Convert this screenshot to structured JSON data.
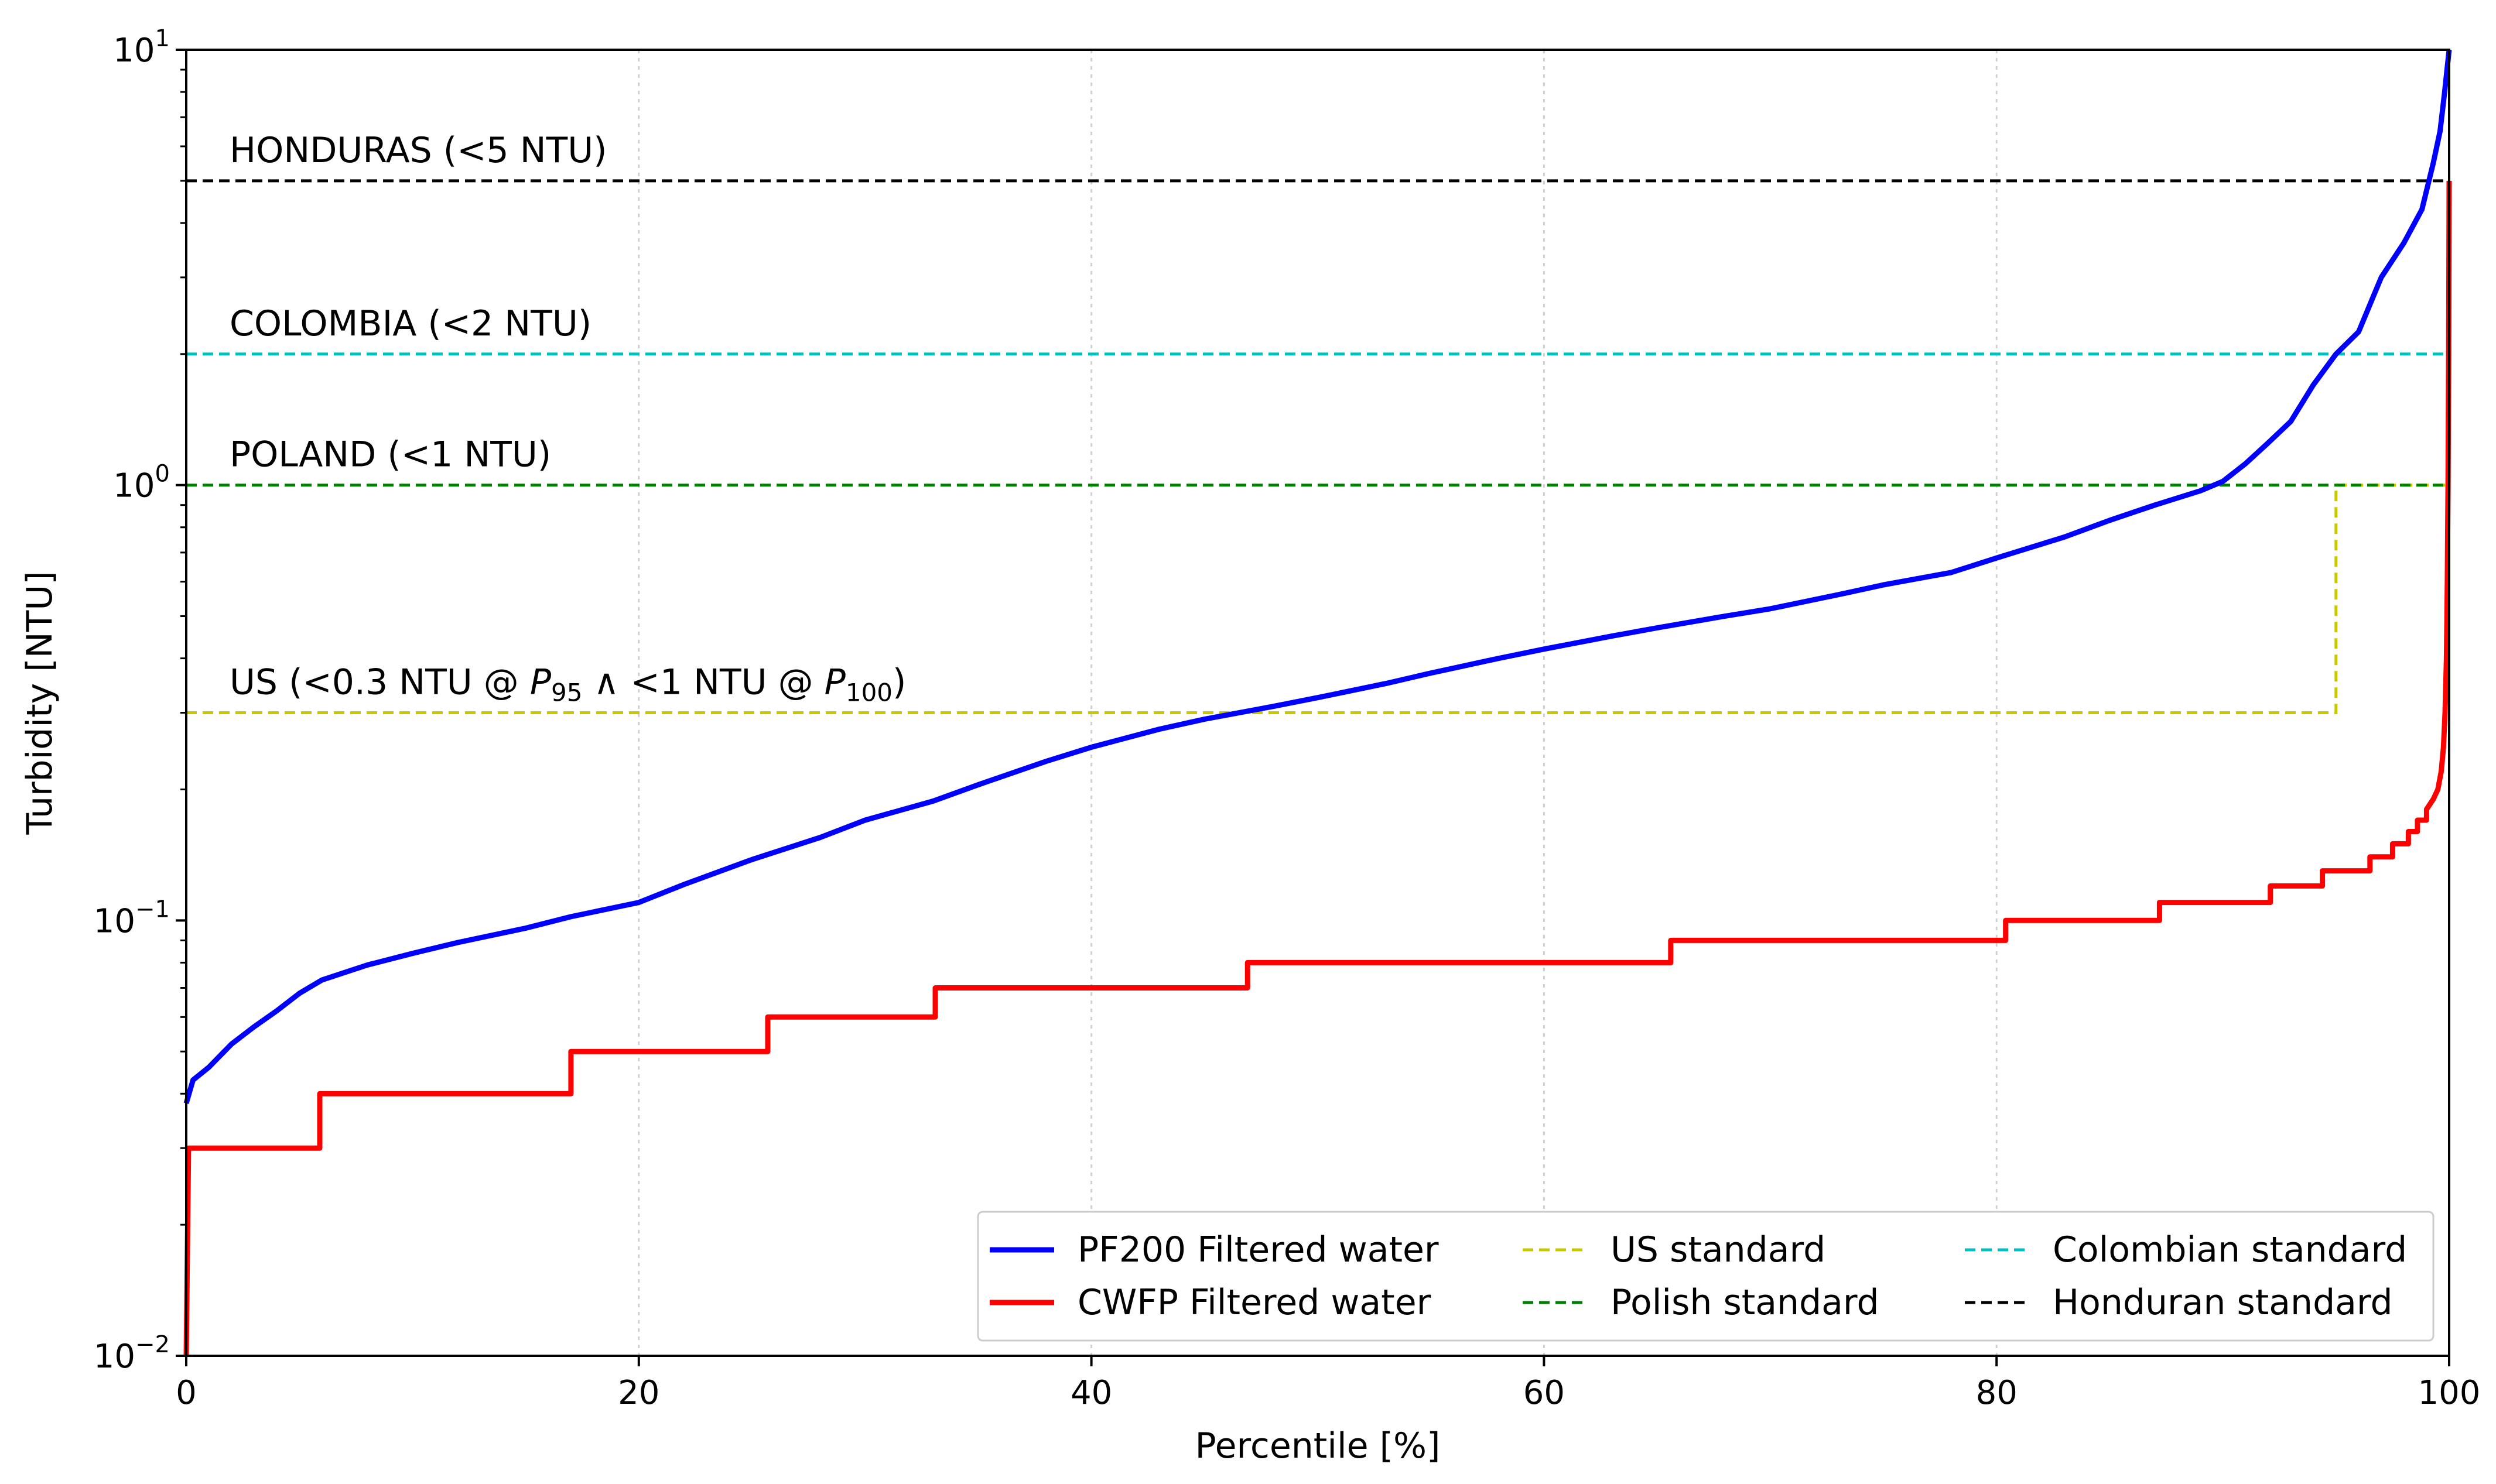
{
  "chart_data": {
    "type": "line",
    "xlabel": "Percentile [%]",
    "ylabel": "Turbidity [NTU]",
    "xlim": [
      0,
      100
    ],
    "ylim": [
      0.01,
      10
    ],
    "yscale": "log",
    "grid": "x-only, dotted",
    "legend_position": "lower-right",
    "x_ticks": [
      {
        "value": 0,
        "label": "0"
      },
      {
        "value": 20,
        "label": "20"
      },
      {
        "value": 40,
        "label": "40"
      },
      {
        "value": 60,
        "label": "60"
      },
      {
        "value": 80,
        "label": "80"
      },
      {
        "value": 100,
        "label": "100"
      }
    ],
    "y_ticks": [
      {
        "value": 0.01,
        "base": "10",
        "exp": "−2"
      },
      {
        "value": 0.1,
        "base": "10",
        "exp": "−1"
      },
      {
        "value": 1,
        "base": "10",
        "exp": "0"
      },
      {
        "value": 10,
        "base": "10",
        "exp": "1"
      }
    ],
    "series": [
      {
        "name": "PF200 Filtered water",
        "color": "#0000ff",
        "style": "solid",
        "points": [
          [
            0,
            0.038
          ],
          [
            0.3,
            0.043
          ],
          [
            1,
            0.046
          ],
          [
            2,
            0.052
          ],
          [
            3,
            0.057
          ],
          [
            4,
            0.062
          ],
          [
            5,
            0.068
          ],
          [
            6,
            0.073
          ],
          [
            8,
            0.079
          ],
          [
            10,
            0.084
          ],
          [
            12,
            0.089
          ],
          [
            15,
            0.096
          ],
          [
            17,
            0.102
          ],
          [
            20,
            0.11
          ],
          [
            22,
            0.121
          ],
          [
            25,
            0.138
          ],
          [
            28,
            0.155
          ],
          [
            30,
            0.17
          ],
          [
            33,
            0.188
          ],
          [
            35,
            0.205
          ],
          [
            38,
            0.232
          ],
          [
            40,
            0.25
          ],
          [
            43,
            0.275
          ],
          [
            45,
            0.29
          ],
          [
            48,
            0.31
          ],
          [
            50,
            0.325
          ],
          [
            53,
            0.35
          ],
          [
            55,
            0.37
          ],
          [
            58,
            0.4
          ],
          [
            60,
            0.42
          ],
          [
            63,
            0.45
          ],
          [
            65,
            0.47
          ],
          [
            68,
            0.5
          ],
          [
            70,
            0.52
          ],
          [
            73,
            0.56
          ],
          [
            75,
            0.59
          ],
          [
            78,
            0.63
          ],
          [
            80,
            0.68
          ],
          [
            83,
            0.76
          ],
          [
            85,
            0.83
          ],
          [
            87,
            0.9
          ],
          [
            89,
            0.97
          ],
          [
            90,
            1.02
          ],
          [
            91,
            1.12
          ],
          [
            92,
            1.25
          ],
          [
            93,
            1.4
          ],
          [
            94,
            1.7
          ],
          [
            95,
            2.0
          ],
          [
            96,
            2.25
          ],
          [
            96.5,
            2.6
          ],
          [
            97,
            3.0
          ],
          [
            98,
            3.6
          ],
          [
            98.8,
            4.3
          ],
          [
            99.3,
            5.5
          ],
          [
            99.6,
            6.5
          ],
          [
            99.8,
            8.0
          ],
          [
            100,
            10
          ]
        ]
      },
      {
        "name": "CWFP Filtered water",
        "color": "#ff0000",
        "style": "solid-step",
        "points": [
          [
            0,
            0.01
          ],
          [
            0.1,
            0.03
          ],
          [
            5.9,
            0.03
          ],
          [
            5.9,
            0.04
          ],
          [
            17,
            0.04
          ],
          [
            17,
            0.05
          ],
          [
            25.7,
            0.05
          ],
          [
            25.7,
            0.06
          ],
          [
            33.1,
            0.06
          ],
          [
            33.1,
            0.07
          ],
          [
            46.9,
            0.07
          ],
          [
            46.9,
            0.08
          ],
          [
            65.6,
            0.08
          ],
          [
            65.6,
            0.09
          ],
          [
            80.4,
            0.09
          ],
          [
            80.4,
            0.1
          ],
          [
            87.2,
            0.1
          ],
          [
            87.2,
            0.11
          ],
          [
            92.1,
            0.11
          ],
          [
            92.1,
            0.12
          ],
          [
            94.4,
            0.12
          ],
          [
            94.4,
            0.13
          ],
          [
            96.5,
            0.13
          ],
          [
            96.5,
            0.14
          ],
          [
            97.5,
            0.14
          ],
          [
            97.5,
            0.15
          ],
          [
            98.2,
            0.15
          ],
          [
            98.2,
            0.16
          ],
          [
            98.6,
            0.16
          ],
          [
            98.6,
            0.17
          ],
          [
            99,
            0.17
          ],
          [
            99,
            0.18
          ],
          [
            99.3,
            0.19
          ],
          [
            99.5,
            0.2
          ],
          [
            99.65,
            0.22
          ],
          [
            99.75,
            0.25
          ],
          [
            99.82,
            0.3
          ],
          [
            99.88,
            0.4
          ],
          [
            99.92,
            0.6
          ],
          [
            99.95,
            1.0
          ],
          [
            99.98,
            2.0
          ],
          [
            100,
            5.0
          ]
        ]
      }
    ],
    "standards": [
      {
        "name": "US standard",
        "color": "#c8c800",
        "segments": [
          [
            [
              0,
              0.3
            ],
            [
              95,
              0.3
            ],
            [
              95,
              1
            ],
            [
              100,
              1
            ]
          ]
        ]
      },
      {
        "name": "Polish standard",
        "color": "#008000",
        "segments": [
          [
            [
              0,
              1
            ],
            [
              100,
              1
            ]
          ]
        ]
      },
      {
        "name": "Colombian standard",
        "color": "#00c0c0",
        "segments": [
          [
            [
              0,
              2
            ],
            [
              100,
              2
            ]
          ]
        ]
      },
      {
        "name": "Honduran standard",
        "color": "#000000",
        "segments": [
          [
            [
              0,
              5
            ],
            [
              100,
              5
            ]
          ]
        ]
      }
    ],
    "annotations": {
      "honduras": "HONDURAS (<5 NTU)",
      "colombia": "COLOMBIA (<2 NTU)",
      "poland": "POLAND (<1 NTU)",
      "us_prefix": "US (<0.3 NTU @ ",
      "us_p": "P",
      "us_sub95": "95",
      "us_mid": " ∧ <1 NTU @ ",
      "us_sub100": "100",
      "us_suffix": ")"
    },
    "legend": [
      {
        "label": "PF200 Filtered water",
        "color": "#0000ff",
        "dashed": false
      },
      {
        "label": "CWFP Filtered water",
        "color": "#ff0000",
        "dashed": false
      },
      {
        "label": "US standard",
        "color": "#c8c800",
        "dashed": true
      },
      {
        "label": "Polish standard",
        "color": "#008000",
        "dashed": true
      },
      {
        "label": "Colombian standard",
        "color": "#00c0c0",
        "dashed": true
      },
      {
        "label": "Honduran standard",
        "color": "#000000",
        "dashed": true
      }
    ]
  }
}
